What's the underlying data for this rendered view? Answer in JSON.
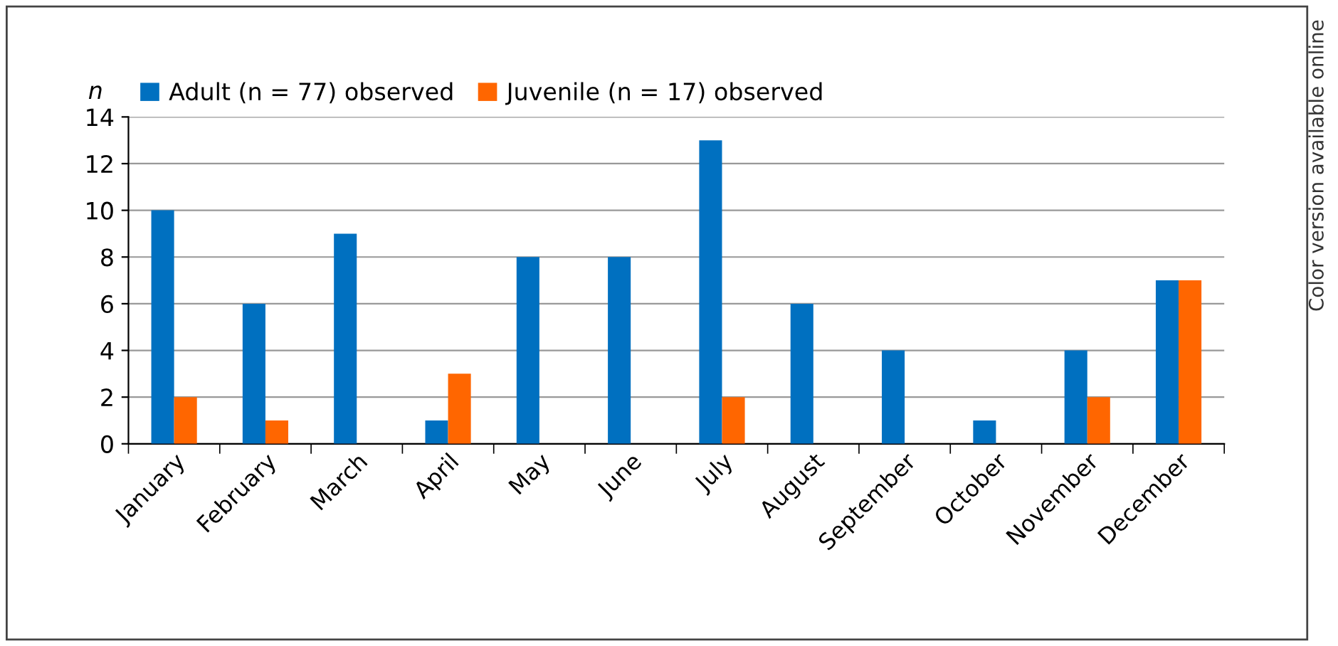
{
  "chart_data": {
    "type": "bar",
    "ylabel": "n",
    "categories": [
      "January",
      "February",
      "March",
      "April",
      "May",
      "June",
      "July",
      "August",
      "September",
      "October",
      "November",
      "December"
    ],
    "series": [
      {
        "name": "Adult (n = 77) observed",
        "color": "#0070c0",
        "values": [
          10,
          6,
          9,
          1,
          8,
          8,
          13,
          6,
          4,
          1,
          4,
          7
        ]
      },
      {
        "name": "Juvenile (n = 17) observed",
        "color": "#ff6600",
        "values": [
          2,
          1,
          0,
          3,
          0,
          0,
          2,
          0,
          0,
          0,
          2,
          7
        ]
      }
    ],
    "ylim": [
      0,
      14
    ],
    "yticks": [
      0,
      2,
      4,
      6,
      8,
      10,
      12,
      14
    ],
    "grid": "y",
    "legend": "top left",
    "annotations": [
      "Color version available online"
    ]
  }
}
